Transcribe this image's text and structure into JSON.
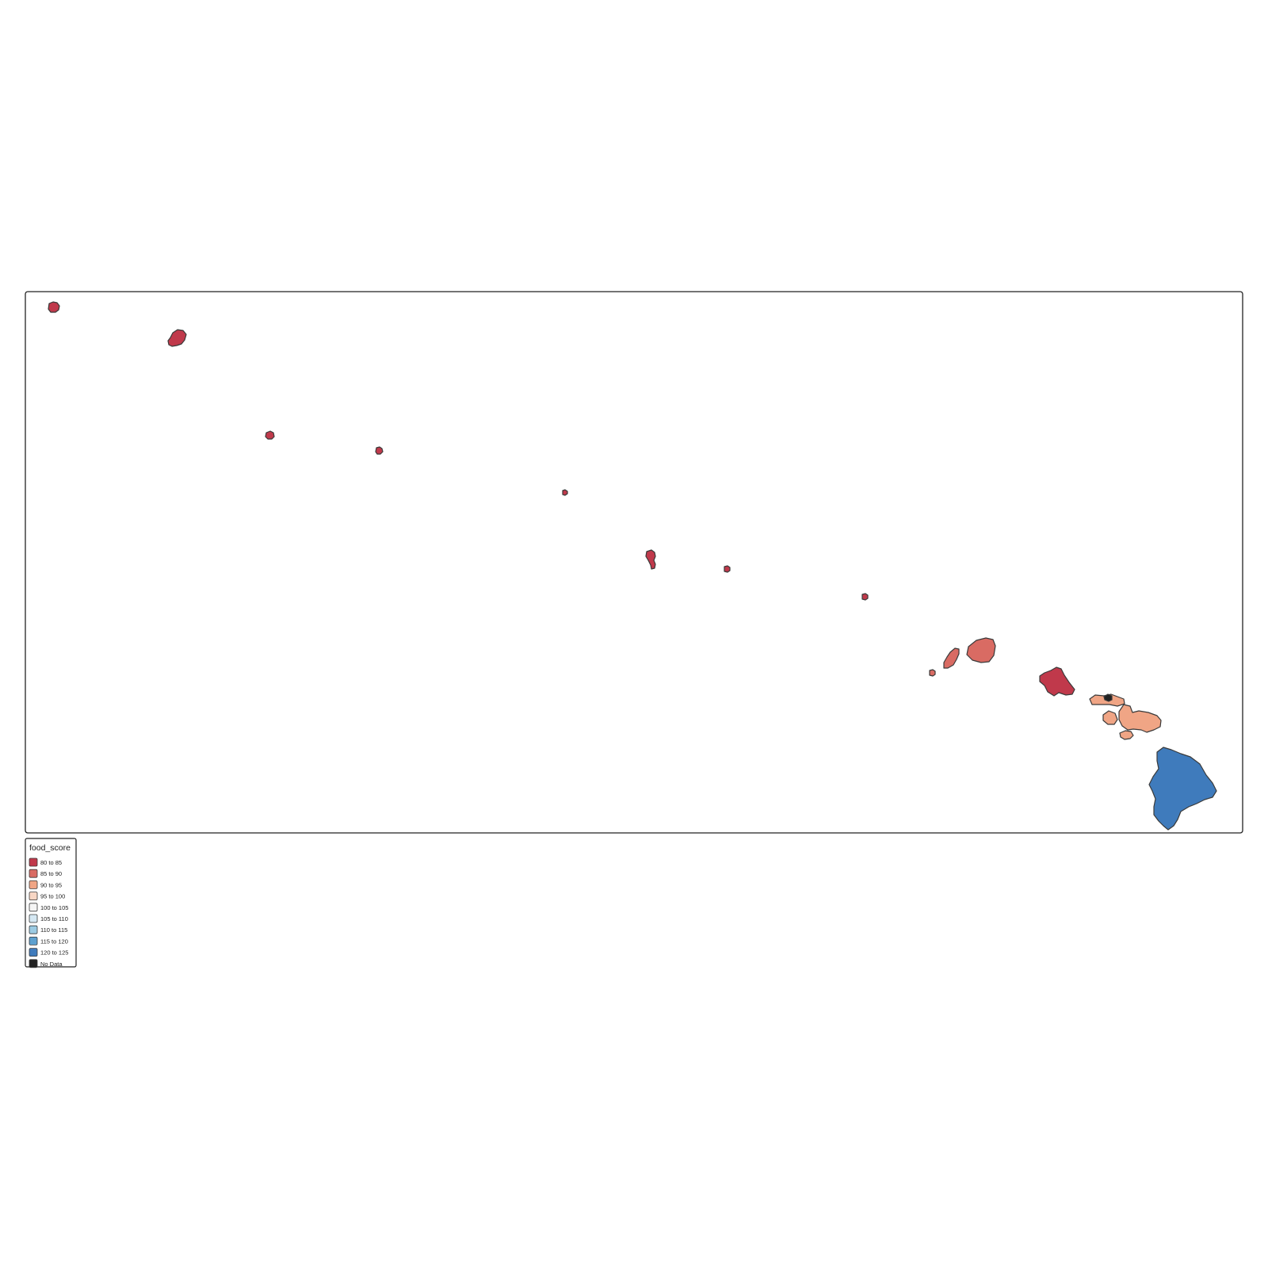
{
  "legend": {
    "title": "food_score",
    "items": [
      {
        "label": "80 to 85",
        "color": "#c0394b"
      },
      {
        "label": "85 to 90",
        "color": "#d96b63"
      },
      {
        "label": "90 to 95",
        "color": "#f0a585"
      },
      {
        "label": "95 to 100",
        "color": "#f8d6c4"
      },
      {
        "label": "100 to 105",
        "color": "#f5f5f5"
      },
      {
        "label": "105 to 110",
        "color": "#d5e8f3"
      },
      {
        "label": "110 to 115",
        "color": "#9ccbe3"
      },
      {
        "label": "115 to 120",
        "color": "#5da0cf"
      },
      {
        "label": "120 to 125",
        "color": "#3f7bbc"
      },
      {
        "label": "No Data",
        "color": "#222222"
      }
    ]
  },
  "regions": [
    {
      "id": "kure-atoll",
      "class": "80 to 85"
    },
    {
      "id": "midway-atoll",
      "class": "80 to 85"
    },
    {
      "id": "pearl-hermes-atoll",
      "class": "80 to 85"
    },
    {
      "id": "lisianski-island",
      "class": "80 to 85"
    },
    {
      "id": "laysan-island",
      "class": "80 to 85"
    },
    {
      "id": "french-frigate-shoals",
      "class": "80 to 85"
    },
    {
      "id": "necker-island",
      "class": "80 to 85"
    },
    {
      "id": "nihoa",
      "class": "80 to 85"
    },
    {
      "id": "lehua",
      "class": "85 to 90"
    },
    {
      "id": "niihau",
      "class": "85 to 90"
    },
    {
      "id": "kauai",
      "class": "85 to 90"
    },
    {
      "id": "oahu",
      "class": "80 to 85"
    },
    {
      "id": "molokai",
      "class": "90 to 95"
    },
    {
      "id": "kalawao",
      "class": "No Data"
    },
    {
      "id": "lanai",
      "class": "90 to 95"
    },
    {
      "id": "maui",
      "class": "90 to 95"
    },
    {
      "id": "kahoolawe",
      "class": "90 to 95"
    },
    {
      "id": "hawaii-big-island",
      "class": "120 to 125"
    }
  ]
}
